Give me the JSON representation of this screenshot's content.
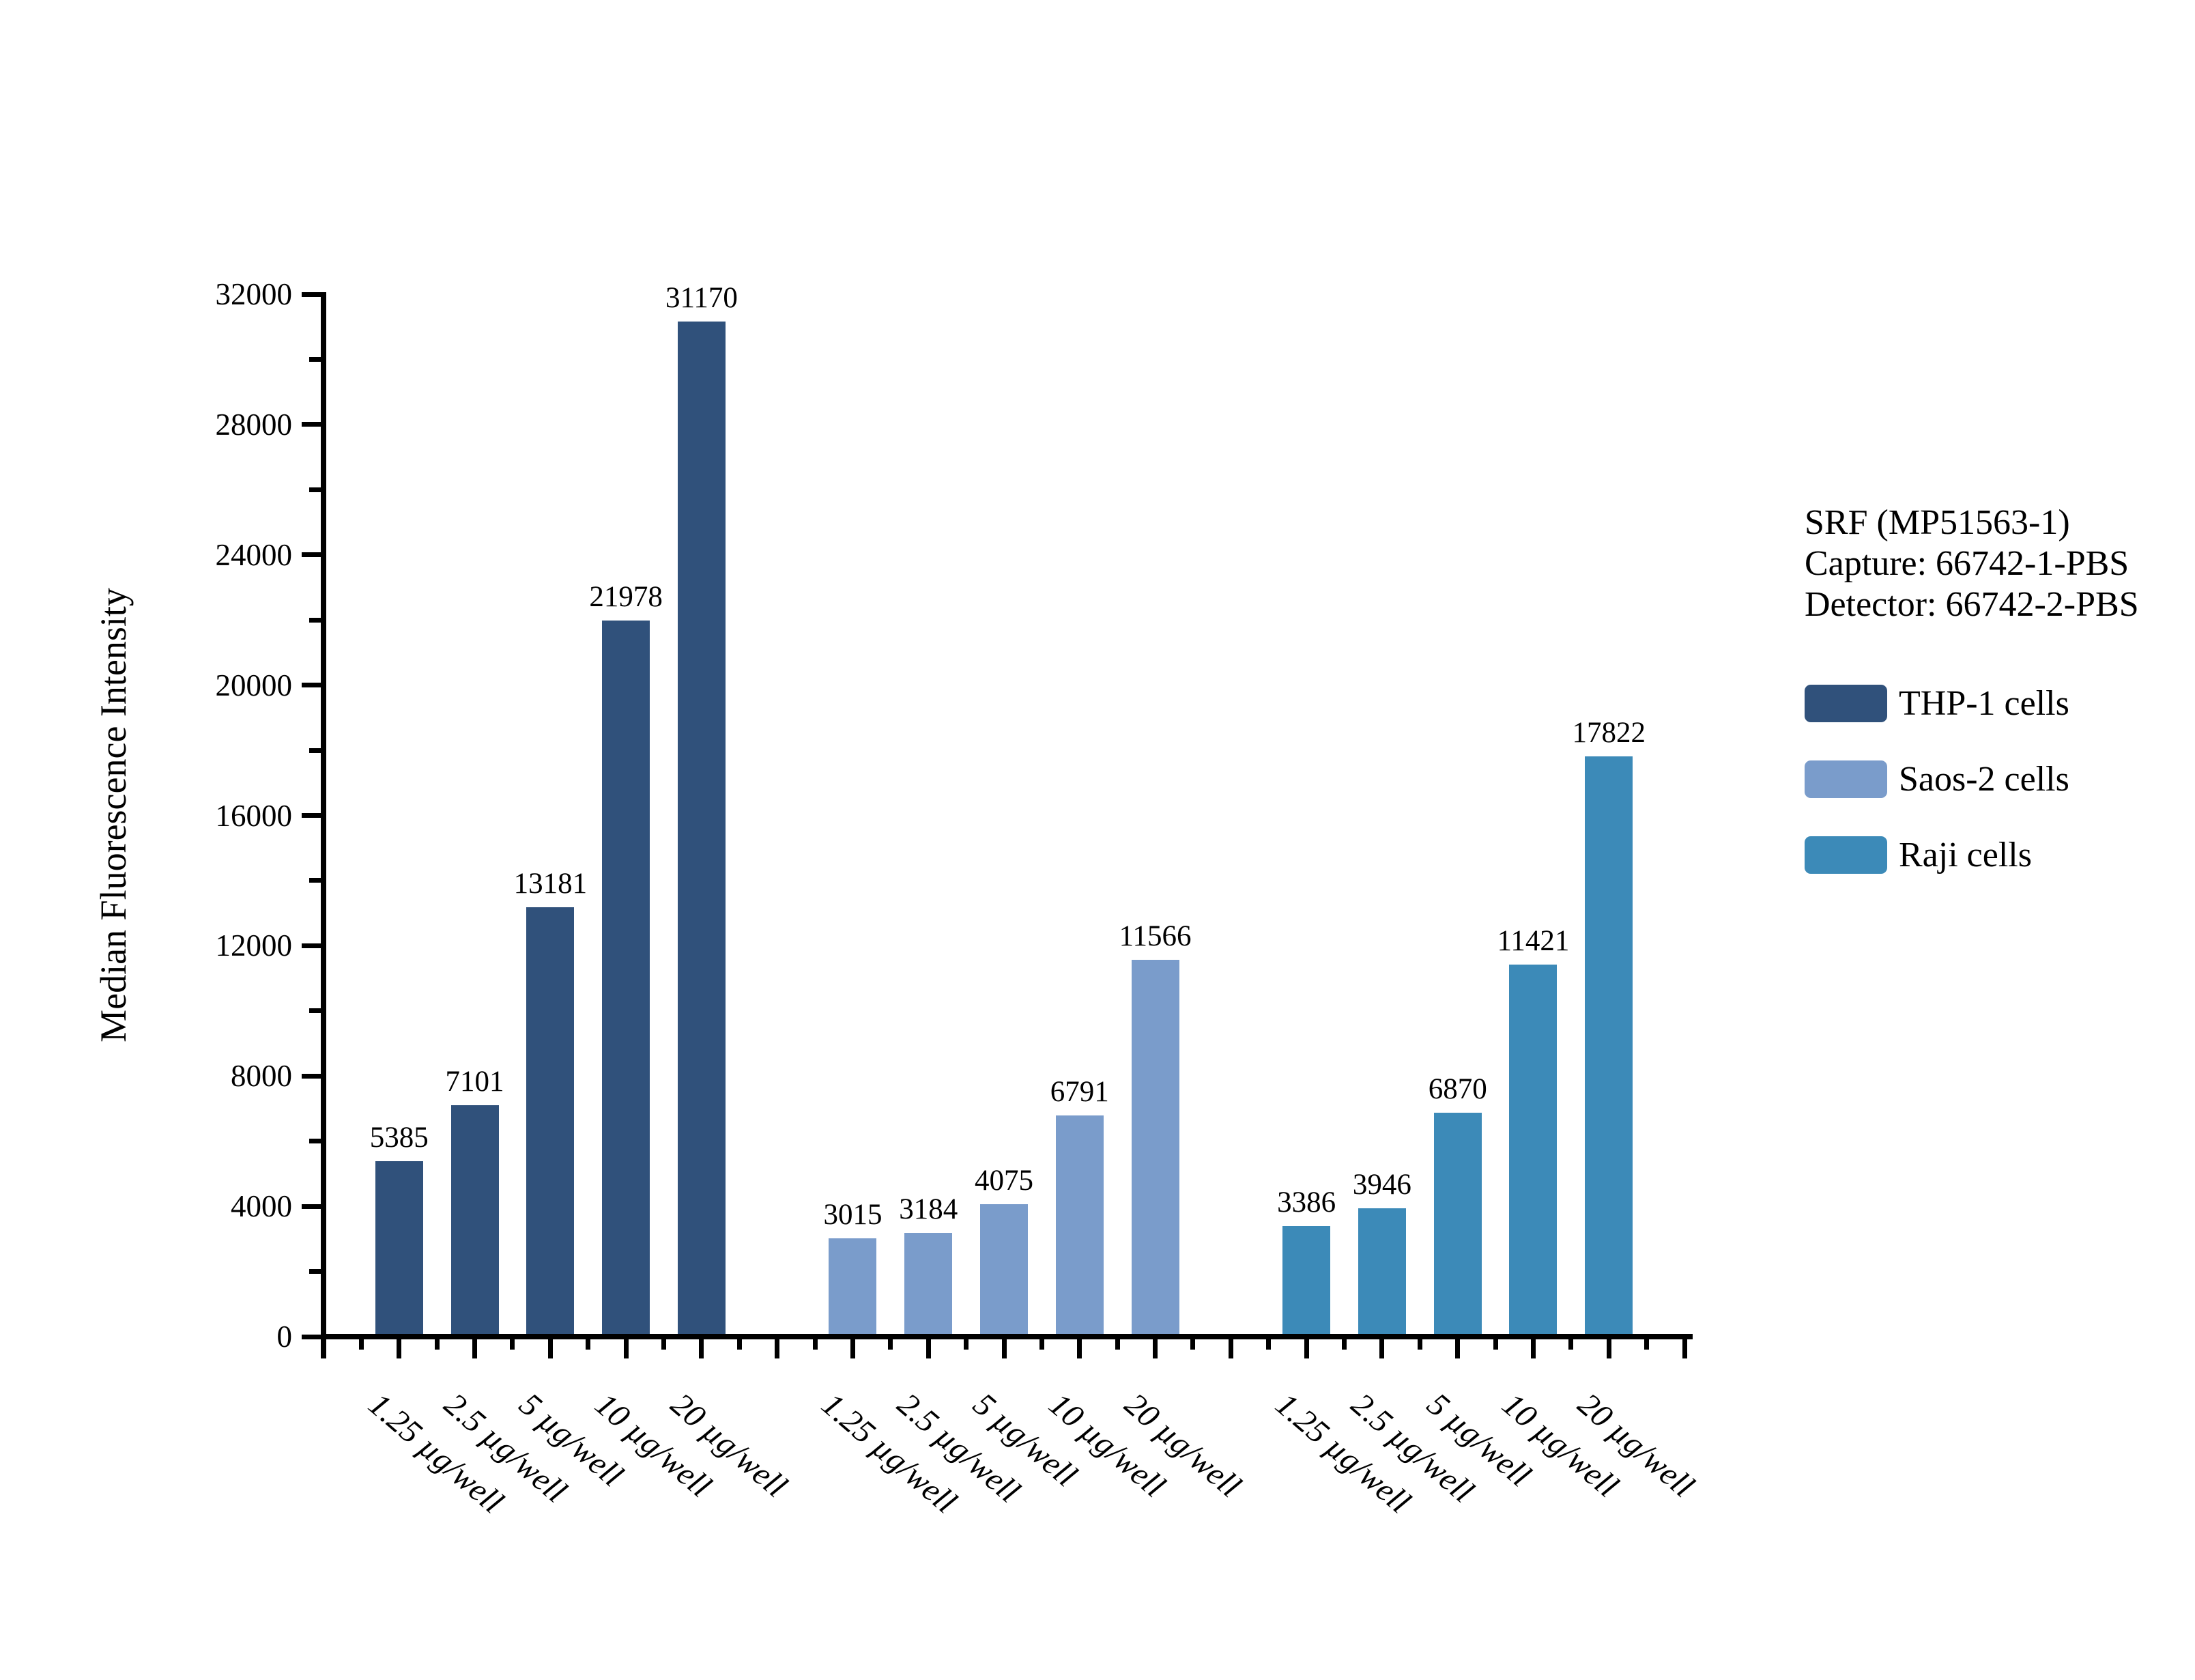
{
  "chart_data": {
    "type": "bar",
    "title": "",
    "xlabel": "",
    "ylabel": "Median Fluorescence Intensity",
    "ylim": [
      0,
      32000
    ],
    "ytick_step": 4000,
    "yminor_step": 2000,
    "grid": false,
    "legend_position": "right",
    "categories": [
      "1.25 µg/well",
      "2.5 µg/well",
      "5 µg/well",
      "10 µg/well",
      "20 µg/well"
    ],
    "series": [
      {
        "name": "THP-1 cells",
        "color": "#30517B",
        "values": [
          5385,
          7101,
          13181,
          21978,
          31170
        ]
      },
      {
        "name": "Saos-2 cells",
        "color": "#7A9CCB",
        "values": [
          3015,
          3184,
          4075,
          6791,
          11566
        ]
      },
      {
        "name": "Raji cells",
        "color": "#3C8AB8",
        "values": [
          3386,
          3946,
          6870,
          11421,
          17822
        ]
      }
    ],
    "annotation": {
      "line1": "SRF (MP51563-1)",
      "line2": "Capture: 66742-1-PBS",
      "line3": "Detector: 66742-2-PBS"
    }
  }
}
